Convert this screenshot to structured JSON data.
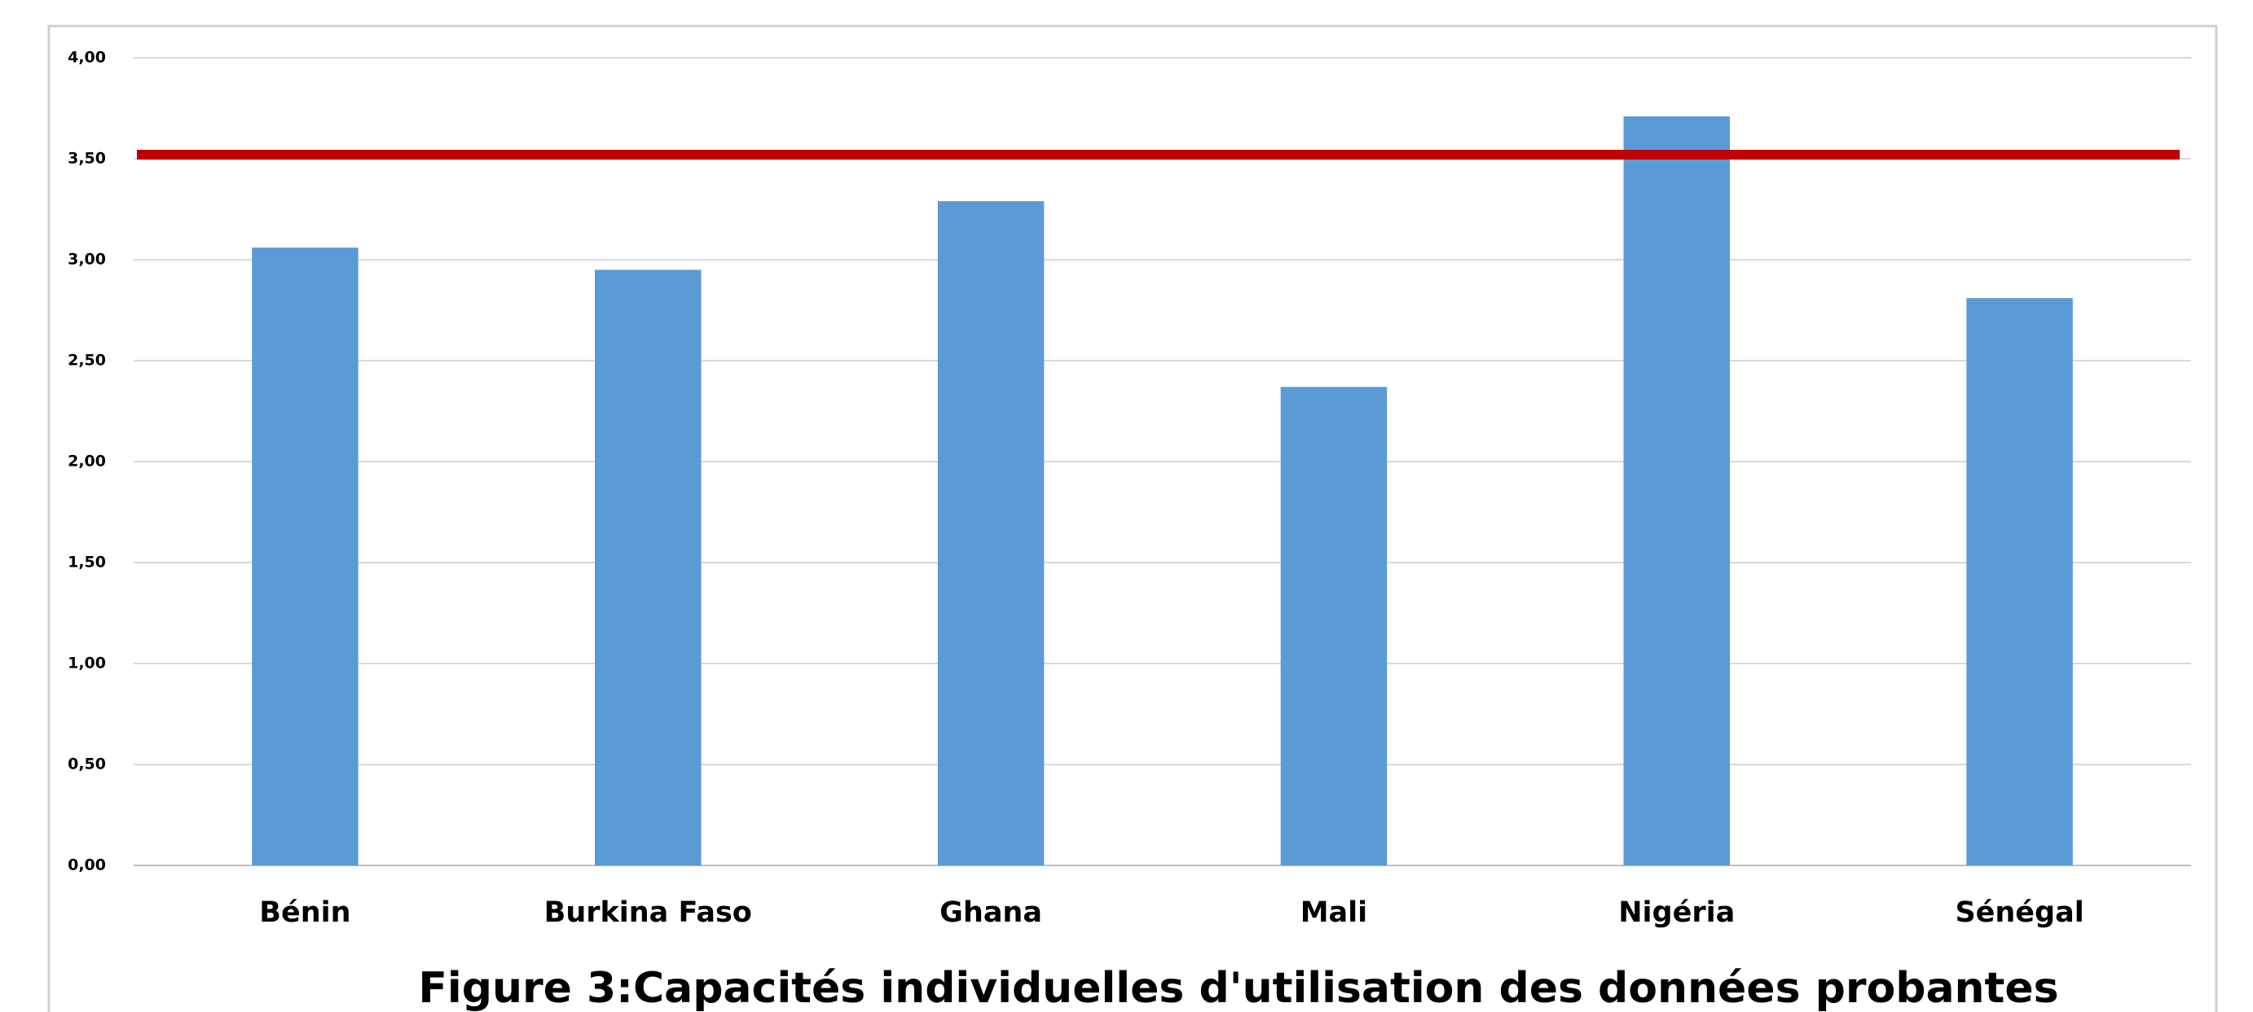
{
  "chart_data": {
    "type": "bar",
    "title": "Figure 3:Capacités individuelles d'utilisation des données probantes",
    "categories": [
      "Bénin",
      "Burkina Faso",
      "Ghana",
      "Mali",
      "Nigéria",
      "Sénégal"
    ],
    "values": [
      3.06,
      2.95,
      3.29,
      2.37,
      3.71,
      2.81
    ],
    "color": "#5b9bd5",
    "ylim": [
      0,
      4
    ],
    "yticks": [
      {
        "value": 0,
        "label": "0,00"
      },
      {
        "value": 0.5,
        "label": "0,50"
      },
      {
        "value": 1,
        "label": "1,00"
      },
      {
        "value": 1.5,
        "label": "1,50"
      },
      {
        "value": 2,
        "label": "2,00"
      },
      {
        "value": 2.5,
        "label": "2,50"
      },
      {
        "value": 3,
        "label": "3,00"
      },
      {
        "value": 3.5,
        "label": "3,50"
      },
      {
        "value": 4,
        "label": "4,00"
      }
    ],
    "grid": true,
    "reference_line": {
      "value": 3.52,
      "color": "#c00000"
    }
  }
}
